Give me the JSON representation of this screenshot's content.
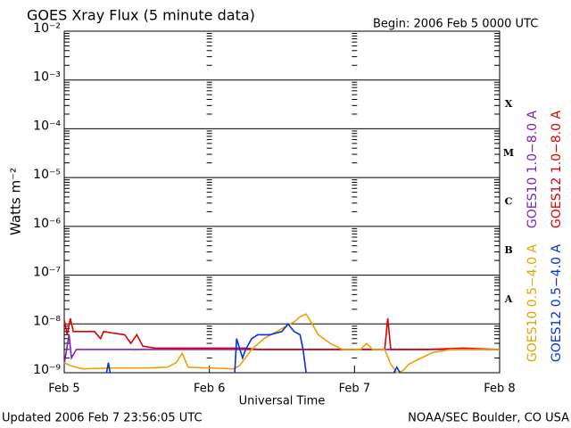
{
  "chart_data": {
    "type": "line",
    "title": "GOES Xray Flux (5 minute data)",
    "subtitle": "Begin:  2006 Feb 5 0000 UTC",
    "xlabel": "Universal Time",
    "ylabel": "Watts m⁻²",
    "footer_left": "Updated 2006 Feb  7 23:56:05 UTC",
    "footer_right": "NOAA/SEC Boulder, CO USA",
    "log_y": true,
    "grid": true,
    "xlim": [
      0,
      72
    ],
    "xticks": [
      {
        "value": 0,
        "label": "Feb 5"
      },
      {
        "value": 24,
        "label": "Feb 6"
      },
      {
        "value": 48,
        "label": "Feb 7"
      },
      {
        "value": 72,
        "label": "Feb 8"
      }
    ],
    "ylim": [
      1e-09,
      0.01
    ],
    "yticks": [
      {
        "value": 0.01,
        "label": "10⁻²"
      },
      {
        "value": 0.001,
        "label": "10⁻³"
      },
      {
        "value": 0.0001,
        "label": "10⁻⁴"
      },
      {
        "value": 1e-05,
        "label": "10⁻⁵"
      },
      {
        "value": 1e-06,
        "label": "10⁻⁶"
      },
      {
        "value": 1e-07,
        "label": "10⁻⁷"
      },
      {
        "value": 1e-08,
        "label": "10⁻⁸"
      },
      {
        "value": 1e-09,
        "label": "10⁻⁹"
      }
    ],
    "flare_classes": [
      "X",
      "M",
      "C",
      "B",
      "A"
    ],
    "series": [
      {
        "name": "GOES10 1.0−8.0 A",
        "color": "#8020c0",
        "x": [
          0,
          0.8,
          1.2,
          2,
          72
        ],
        "values": [
          1.5e-09,
          6e-09,
          2e-09,
          3e-09,
          3e-09
        ]
      },
      {
        "name": "GOES12 1.0−8.0 A",
        "color": "#e00000",
        "x": [
          0,
          0.5,
          1,
          1.5,
          3,
          5,
          6,
          6.5,
          8,
          10,
          11,
          12,
          13,
          15,
          20,
          25,
          30,
          32,
          40,
          50,
          53,
          53.5,
          54,
          60,
          66,
          72
        ],
        "values": [
          1.2e-08,
          6e-09,
          1.3e-08,
          7e-09,
          7e-09,
          7e-09,
          5e-09,
          7e-09,
          6.5e-09,
          6e-09,
          4e-09,
          6e-09,
          3.5e-09,
          3.2e-09,
          3.2e-09,
          3.2e-09,
          3.2e-09,
          3e-09,
          3e-09,
          3e-09,
          3e-09,
          1.3e-08,
          3e-09,
          3e-09,
          3.2e-09,
          3e-09
        ]
      },
      {
        "name": "GOES10 0.5−4.0 A",
        "color": "#f0a000",
        "x": [
          0,
          1,
          3,
          8,
          14,
          17,
          18.5,
          19.5,
          20.5,
          24,
          28,
          29,
          31,
          33,
          36,
          38,
          39,
          40,
          41,
          42,
          44,
          46,
          49,
          50,
          51,
          53,
          54,
          55,
          56,
          57,
          59,
          61,
          64,
          72
        ],
        "values": [
          1.6e-09,
          1.4e-09,
          1.2e-09,
          1.25e-09,
          1.25e-09,
          1.3e-09,
          1.6e-09,
          2.5e-09,
          1.3e-09,
          1.25e-09,
          1.2e-09,
          1.4e-09,
          3e-09,
          5e-09,
          8e-09,
          1.1e-08,
          1.4e-08,
          1.6e-08,
          1e-08,
          6e-09,
          4e-09,
          3e-09,
          3e-09,
          4e-09,
          3e-09,
          3e-09,
          1.5e-09,
          1e-09,
          1.1e-09,
          1.5e-09,
          2e-09,
          2.6e-09,
          3e-09,
          3e-09
        ]
      },
      {
        "name": "GOES12 0.5−4.0 A",
        "color": "#0030f0",
        "x": [
          7,
          7.3,
          7.6,
          8,
          28.2,
          28.5,
          29.5,
          30,
          31,
          32,
          34,
          36,
          37,
          38,
          39,
          39.5,
          40,
          41,
          54.5,
          55,
          55.5
        ],
        "values": [
          1e-09,
          1.6e-09,
          1e-09,
          null,
          1e-09,
          5e-09,
          2e-09,
          3e-09,
          5e-09,
          6e-09,
          6e-09,
          7e-09,
          1e-08,
          7e-09,
          6e-09,
          3e-09,
          1e-09,
          null,
          1e-09,
          1.3e-09,
          1e-09
        ]
      }
    ]
  }
}
